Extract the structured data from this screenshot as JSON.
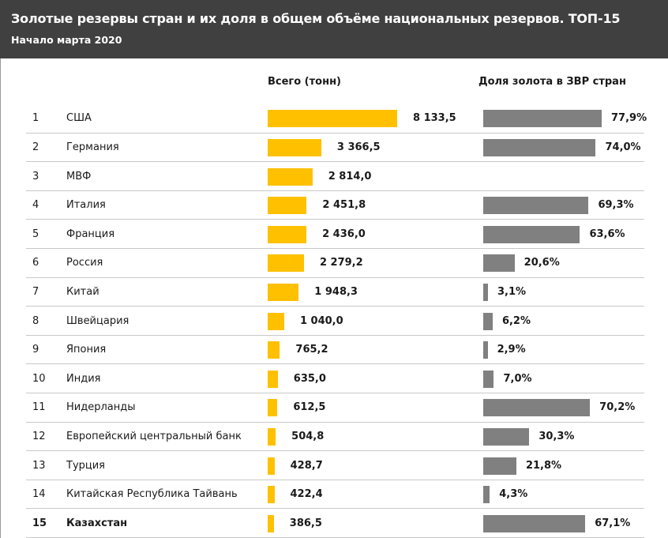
{
  "header": {
    "title": "Золотые резервы стран  и их доля в общем объёме национальных резервов. ТОП-15",
    "subtitle": "Начало марта  2020"
  },
  "columns": {
    "total": "Всего (тонн)",
    "share": "Доля золота в ЗВР стран"
  },
  "colors": {
    "gold_bar": "#ffc000",
    "share_bar": "#808080",
    "header_bg": "#404040"
  },
  "chart_data": {
    "type": "bar",
    "title": "Золотые резервы стран  и их доля в общем объёме национальных резервов. ТОП-15",
    "subtitle": "Начало марта  2020",
    "categories": [
      "США",
      "Германия",
      "МВФ",
      "Италия",
      "Франция",
      "Россия",
      "Китай",
      "Швейцария",
      "Япония",
      "Индия",
      "Нидерланды",
      "Европейский центральный банк",
      "Турция",
      "Китайская Республика Тайвань",
      "Казахстан"
    ],
    "ranks": [
      "1",
      "2",
      "3",
      "4",
      "5",
      "6",
      "7",
      "8",
      "9",
      "10",
      "11",
      "12",
      "13",
      "14",
      "15"
    ],
    "series": [
      {
        "name": "Всего (тонн)",
        "values": [
          8133.5,
          3366.5,
          2814.0,
          2451.8,
          2436.0,
          2279.2,
          1948.3,
          1040.0,
          765.2,
          635.0,
          612.5,
          504.8,
          428.7,
          422.4,
          386.5
        ],
        "labels": [
          "8 133,5",
          "3 366,5",
          "2 814,0",
          "2 451,8",
          "2 436,0",
          "2 279,2",
          "1 948,3",
          "1 040,0",
          "765,2",
          "635,0",
          "612,5",
          "504,8",
          "428,7",
          "422,4",
          "386,5"
        ]
      },
      {
        "name": "Доля золота в ЗВР стран",
        "values": [
          77.9,
          74.0,
          null,
          69.3,
          63.6,
          20.6,
          3.1,
          6.2,
          2.9,
          7.0,
          70.2,
          30.3,
          21.8,
          4.3,
          67.1
        ],
        "labels": [
          "77,9%",
          "74,0%",
          "",
          "69,3%",
          "63,6%",
          "20,6%",
          "3,1%",
          "6,2%",
          "2,9%",
          "7,0%",
          "70,2%",
          "30,3%",
          "21,8%",
          "4,3%",
          "67,1%"
        ]
      }
    ],
    "highlight_row": 15,
    "grid": false
  }
}
